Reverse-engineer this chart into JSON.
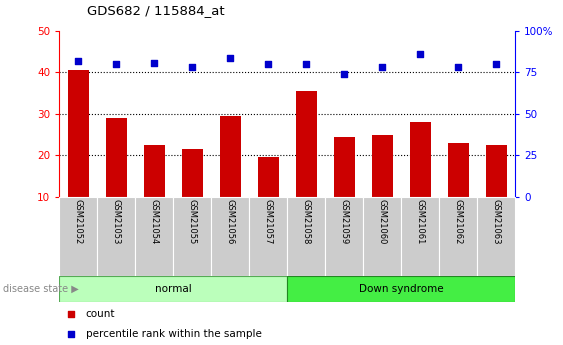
{
  "title": "GDS682 / 115884_at",
  "categories": [
    "GSM21052",
    "GSM21053",
    "GSM21054",
    "GSM21055",
    "GSM21056",
    "GSM21057",
    "GSM21058",
    "GSM21059",
    "GSM21060",
    "GSM21061",
    "GSM21062",
    "GSM21063"
  ],
  "bar_values": [
    40.5,
    29.0,
    22.5,
    21.5,
    29.5,
    19.5,
    35.5,
    24.5,
    25.0,
    28.0,
    23.0,
    22.5
  ],
  "percentile_values": [
    82,
    80,
    81,
    78,
    84,
    80,
    80,
    74,
    78,
    86,
    78,
    80
  ],
  "bar_color": "#cc0000",
  "percentile_color": "#0000cc",
  "ylim_left": [
    10,
    50
  ],
  "ylim_right": [
    0,
    100
  ],
  "yticks_left": [
    10,
    20,
    30,
    40,
    50
  ],
  "yticks_right": [
    0,
    25,
    50,
    75,
    100
  ],
  "ytick_labels_right": [
    "0",
    "25",
    "50",
    "75",
    "100%"
  ],
  "grid_values": [
    20,
    30,
    40
  ],
  "normal_color": "#bbffbb",
  "downsyndrome_color": "#44ee44",
  "label_bg_color": "#cccccc",
  "disease_state_label": "disease state",
  "normal_label": "normal",
  "downsyndrome_label": "Down syndrome",
  "legend_count": "count",
  "legend_percentile": "percentile rank within the sample",
  "bar_width": 0.55
}
